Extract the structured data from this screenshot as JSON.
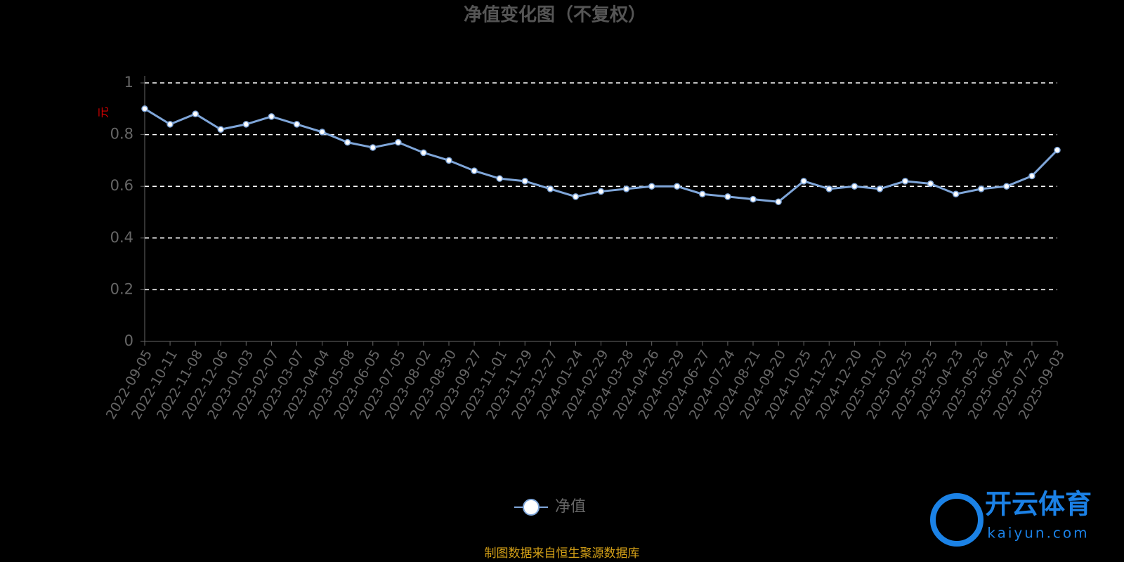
{
  "chart_data": {
    "type": "line",
    "title": "净值变化图（不复权）",
    "y_label": "元",
    "categories": [
      "2022-09-05",
      "2022-10-11",
      "2022-11-08",
      "2022-12-06",
      "2023-01-03",
      "2023-02-07",
      "2023-03-07",
      "2023-04-04",
      "2023-05-08",
      "2023-06-05",
      "2023-07-05",
      "2023-08-02",
      "2023-08-30",
      "2023-09-27",
      "2023-11-01",
      "2023-11-29",
      "2023-12-27",
      "2024-01-24",
      "2024-02-29",
      "2024-03-28",
      "2024-04-26",
      "2024-05-29",
      "2024-06-27",
      "2024-07-24",
      "2024-08-21",
      "2024-09-20",
      "2024-10-25",
      "2024-11-22",
      "2024-12-20",
      "2025-01-20",
      "2025-02-25",
      "2025-03-25",
      "2025-04-23",
      "2025-05-26",
      "2025-06-24",
      "2025-07-22",
      "2025-09-03"
    ],
    "series": [
      {
        "name": "净值",
        "color": "#7fa6d9",
        "values": [
          0.9,
          0.84,
          0.88,
          0.82,
          0.84,
          0.87,
          0.84,
          0.81,
          0.77,
          0.75,
          0.77,
          0.73,
          0.7,
          0.66,
          0.63,
          0.62,
          0.59,
          0.56,
          0.58,
          0.59,
          0.6,
          0.6,
          0.57,
          0.56,
          0.55,
          0.54,
          0.62,
          0.59,
          0.6,
          0.59,
          0.62,
          0.61,
          0.57,
          0.59,
          0.6,
          0.64,
          0.74
        ]
      }
    ],
    "ylim": [
      0,
      1
    ],
    "yticks": [
      0,
      0.2,
      0.4,
      0.6,
      0.8,
      1
    ],
    "grid": true,
    "legend": "bottom",
    "source": "制图数据来自恒生聚源数据库",
    "watermark": [
      "开云体育",
      "kaiyun.com"
    ]
  }
}
